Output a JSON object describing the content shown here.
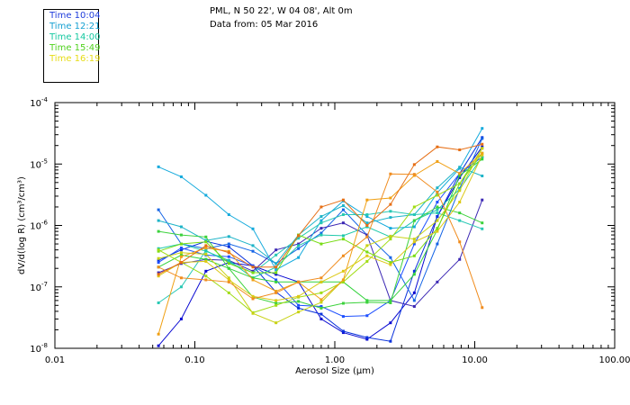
{
  "header": {
    "location": "PML, N 50 22', W 04 08', Alt 0m",
    "date_line": "Data from: 05 Mar 2016"
  },
  "chart_data": {
    "type": "line",
    "xscale": "log",
    "yscale": "log",
    "xlim": [
      0.01,
      100
    ],
    "ylim": [
      1e-08,
      0.0001
    ],
    "xlabel": "Aerosol Size (μm)",
    "ylabel": "dV/d(log R)  (cm³/cm³)",
    "x_ticks": [
      {
        "value": 0.01,
        "label": "0.01"
      },
      {
        "value": 0.1,
        "label": "0.10"
      },
      {
        "value": 1,
        "label": "1.00"
      },
      {
        "value": 10,
        "label": "10.00"
      },
      {
        "value": 100,
        "label": "100.00"
      }
    ],
    "y_ticks": [
      {
        "value": 1e-08,
        "mantissa": "10",
        "exponent": "-8"
      },
      {
        "value": 1e-07,
        "mantissa": "10",
        "exponent": "-7"
      },
      {
        "value": 1e-06,
        "mantissa": "10",
        "exponent": "-6"
      },
      {
        "value": 1e-05,
        "mantissa": "10",
        "exponent": "-5"
      },
      {
        "value": 0.0001,
        "mantissa": "10",
        "exponent": "-4"
      }
    ],
    "legend": [
      {
        "label": "Time 10:04",
        "color": "#1e3cdc"
      },
      {
        "label": "Time 12:21",
        "color": "#14a0d2"
      },
      {
        "label": "Time 14:00",
        "color": "#14c8a0"
      },
      {
        "label": "Time 15:49",
        "color": "#50d21e"
      },
      {
        "label": "Time 16:19",
        "color": "#e6dc14"
      }
    ],
    "x": [
      0.055,
      0.08,
      0.12,
      0.175,
      0.26,
      0.38,
      0.55,
      0.8,
      1.15,
      1.7,
      2.5,
      3.7,
      5.4,
      7.8,
      11.3
    ],
    "series": [
      {
        "color": "#0a0ad2",
        "values": [
          1.1e-08,
          3e-08,
          1.8e-07,
          2.5e-07,
          2.2e-07,
          1.6e-07,
          1.2e-07,
          3e-08,
          1.8e-08,
          1.4e-08,
          2.6e-08,
          8e-08,
          1.4e-06,
          6e-06,
          1.9e-05
        ]
      },
      {
        "color": "#0a32dc",
        "values": [
          2.7e-07,
          4e-07,
          5.5e-07,
          4.5e-07,
          2.2e-07,
          8.2e-08,
          4.5e-08,
          3.6e-08,
          1.9e-08,
          1.5e-08,
          1.3e-08,
          1.8e-07,
          1.4e-06,
          7e-06,
          2.7e-05
        ]
      },
      {
        "color": "#1464e6",
        "values": [
          1.8e-06,
          5e-07,
          4.2e-07,
          5e-07,
          3.8e-07,
          2.4e-07,
          4.2e-07,
          7.5e-07,
          1.8e-06,
          7e-07,
          3e-07,
          6e-08,
          5e-07,
          4e-06,
          2.6e-05
        ]
      },
      {
        "color": "#1e50ff",
        "values": [
          2.5e-07,
          4.3e-07,
          3.3e-07,
          3.1e-07,
          2.2e-07,
          1.3e-07,
          5e-08,
          4.8e-08,
          3.3e-08,
          3.4e-08,
          6e-08,
          5e-07,
          2.4e-06,
          7e-06,
          1.3e-05
        ]
      },
      {
        "color": "#3c28b4",
        "values": [
          1.7e-07,
          2.4e-07,
          2.8e-07,
          2.7e-07,
          1.8e-07,
          4e-07,
          5e-07,
          9e-07,
          1.1e-06,
          7e-07,
          6e-08,
          4.8e-08,
          1.2e-07,
          2.8e-07,
          2.6e-06
        ]
      },
      {
        "color": "#14aadc",
        "values": [
          9e-06,
          6.2e-06,
          3.1e-06,
          1.5e-06,
          8.8e-07,
          1.9e-07,
          3e-07,
          1.2e-06,
          2.5e-06,
          1.4e-06,
          9e-07,
          9.5e-07,
          3.4e-06,
          8.5e-06,
          3.8e-05
        ]
      },
      {
        "color": "#1eb4c8",
        "values": [
          1.2e-06,
          9.5e-07,
          5.7e-07,
          6.6e-07,
          4.7e-07,
          2.4e-07,
          7e-07,
          1.4e-06,
          2.1e-06,
          1.1e-06,
          1.35e-06,
          1.5e-06,
          4.1e-06,
          8.9e-06,
          6.4e-06
        ]
      },
      {
        "color": "#28c8b4",
        "values": [
          5.5e-08,
          1e-07,
          3.9e-07,
          2.5e-07,
          1.7e-07,
          3.3e-07,
          6.2e-07,
          1.1e-06,
          1.5e-06,
          1.5e-06,
          1.7e-06,
          1.5e-06,
          1.6e-06,
          1.2e-06,
          8.8e-07
        ]
      },
      {
        "color": "#1ec8aa",
        "values": [
          4.2e-07,
          5e-07,
          3.8e-07,
          2.7e-07,
          1.4e-07,
          2.1e-07,
          4.7e-07,
          7e-07,
          6.8e-07,
          9.5e-07,
          6.5e-07,
          1.2e-06,
          1.8e-06,
          3.9e-06,
          1.3e-05
        ]
      },
      {
        "color": "#32d23c",
        "values": [
          2.1e-07,
          3.3e-07,
          2.8e-07,
          2e-07,
          1.4e-07,
          1.2e-07,
          1.2e-07,
          1.2e-07,
          1.2e-07,
          6e-08,
          6e-08,
          1.6e-07,
          8.5e-07,
          6.5e-06,
          1.2e-05
        ]
      },
      {
        "color": "#3cd23c",
        "values": [
          8e-07,
          7e-07,
          6.5e-07,
          2e-07,
          6.8e-08,
          5.4e-08,
          5.8e-08,
          4.5e-08,
          5.4e-08,
          5.6e-08,
          5.5e-08,
          1.2e-06,
          2e-06,
          1.6e-06,
          1.1e-06
        ]
      },
      {
        "color": "#78dc14",
        "values": [
          3.8e-07,
          5e-07,
          5.4e-07,
          2.4e-07,
          1.7e-07,
          1.7e-07,
          7e-07,
          5e-07,
          6e-07,
          3.7e-07,
          2.5e-07,
          3.2e-07,
          9e-07,
          4.8e-06,
          1.5e-05
        ]
      },
      {
        "color": "#a0dc14",
        "values": [
          4e-07,
          2.5e-07,
          1.5e-07,
          8e-08,
          3.8e-08,
          5e-08,
          6.8e-08,
          8e-08,
          1.2e-07,
          2.6e-07,
          6e-07,
          2e-06,
          3.1e-06,
          4.8e-06,
          1.8e-05
        ]
      },
      {
        "color": "#c8d214",
        "values": [
          2.9e-07,
          3.6e-07,
          3.4e-07,
          1.4e-07,
          3.7e-08,
          2.6e-08,
          3.9e-08,
          5.6e-08,
          1.3e-07,
          4.7e-07,
          6.7e-07,
          6e-07,
          1.2e-06,
          3.7e-06,
          1.8e-05
        ]
      },
      {
        "color": "#dcc814",
        "values": [
          1.5e-07,
          2.5e-07,
          2.6e-07,
          1.3e-07,
          7e-08,
          6e-08,
          7e-08,
          1.2e-07,
          1.8e-07,
          3.2e-07,
          2.3e-07,
          5.4e-07,
          8e-07,
          2.4e-06,
          1.4e-05
        ]
      },
      {
        "color": "#f0a014",
        "values": [
          1.7e-08,
          3.1e-07,
          4.3e-07,
          3.8e-07,
          1.3e-07,
          8.5e-08,
          1.2e-07,
          6.2e-08,
          1.3e-07,
          2.6e-06,
          2.8e-06,
          6.5e-06,
          1.1e-05,
          7e-06,
          1.5e-05
        ]
      },
      {
        "color": "#e66e14",
        "values": [
          1.6e-07,
          2.5e-07,
          4.7e-07,
          3.6e-07,
          2.1e-07,
          2.1e-07,
          6.8e-07,
          2e-06,
          2.6e-06,
          1e-06,
          2.2e-06,
          9.8e-06,
          1.9e-05,
          1.7e-05,
          2.1e-05
        ]
      },
      {
        "color": "#f08c1e",
        "values": [
          2.1e-07,
          1.4e-07,
          1.3e-07,
          1.2e-07,
          6.4e-08,
          8e-08,
          1.2e-07,
          1.4e-07,
          3.2e-07,
          6.5e-07,
          6.9e-06,
          6.8e-06,
          3.5e-06,
          5.4e-07,
          4.6e-08
        ]
      }
    ]
  }
}
